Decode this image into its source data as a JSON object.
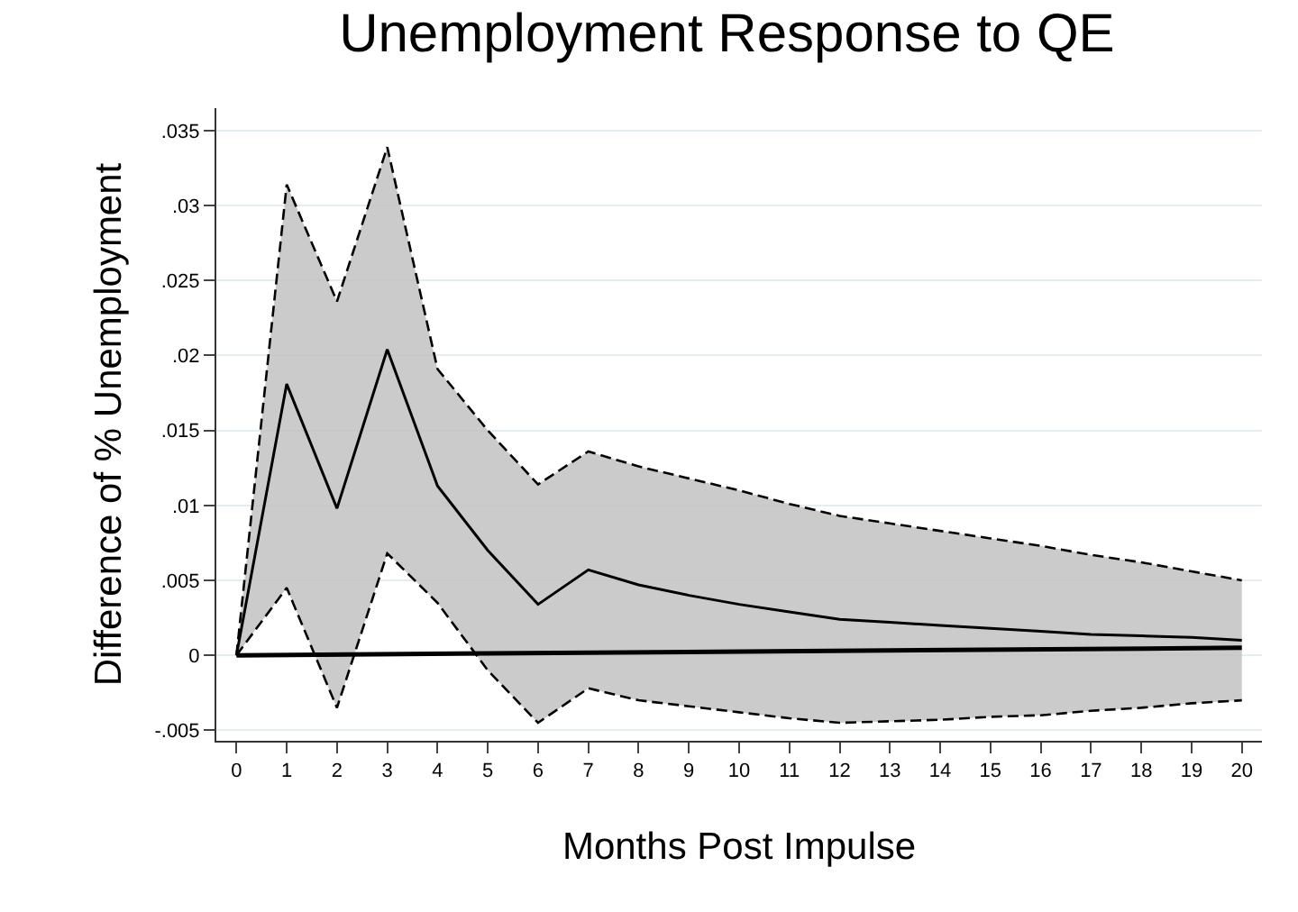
{
  "chart_data": {
    "type": "line",
    "title": "Unemployment Response to QE",
    "xlabel": "Months Post Impulse",
    "ylabel": "Difference of % Unemployment",
    "x": [
      0,
      1,
      2,
      3,
      4,
      5,
      6,
      7,
      8,
      9,
      10,
      11,
      12,
      13,
      14,
      15,
      16,
      17,
      18,
      19,
      20
    ],
    "series": [
      {
        "color": "#000000",
        "line_style": "solid",
        "values": [
          0,
          0.0181,
          0.0098,
          0.0204,
          0.0113,
          0.007,
          0.0034,
          0.0057,
          0.0047,
          0.004,
          0.0034,
          0.0029,
          0.0024,
          0.0022,
          0.002,
          0.0018,
          0.0016,
          0.0014,
          0.0013,
          0.0012,
          0.001
        ],
        "lower": [
          0,
          0.0045,
          -0.0035,
          0.0068,
          0.0035,
          -0.001,
          -0.0045,
          -0.0022,
          -0.003,
          -0.0034,
          -0.0038,
          -0.0042,
          -0.0045,
          -0.0044,
          -0.0043,
          -0.0041,
          -0.004,
          -0.0037,
          -0.0035,
          -0.0032,
          -0.003
        ],
        "upper": [
          0,
          0.0314,
          0.0236,
          0.0339,
          0.0191,
          0.015,
          0.0114,
          0.0136,
          0.0126,
          0.0118,
          0.011,
          0.0101,
          0.0093,
          0.0088,
          0.0083,
          0.0078,
          0.0073,
          0.0067,
          0.0062,
          0.0056,
          0.005
        ]
      },
      {
        "color": "#000000",
        "line_style": "solid",
        "x": [
          0,
          20
        ],
        "values": [
          0,
          0.0005
        ]
      },
      {
        "color": "#000000",
        "line_style": "dashed",
        "values": [
          0,
          0.0314,
          0.0236,
          0.0339,
          0.0191,
          0.015,
          0.0114,
          0.0136,
          0.0126,
          0.0118,
          0.011,
          0.0101,
          0.0093,
          0.0088,
          0.0083,
          0.0078,
          0.0073,
          0.0067,
          0.0062,
          0.0056,
          0.005
        ]
      },
      {
        "color": "#000000",
        "line_style": "dashed",
        "values": [
          0,
          0.0045,
          -0.0035,
          0.0068,
          0.0035,
          -0.001,
          -0.0045,
          -0.0022,
          -0.003,
          -0.0034,
          -0.0038,
          -0.0042,
          -0.0045,
          -0.0044,
          -0.0043,
          -0.0041,
          -0.004,
          -0.0037,
          -0.0035,
          -0.0032,
          -0.003
        ]
      }
    ],
    "xlim": [
      -0.4,
      20.4
    ],
    "xticks": [
      0,
      1,
      2,
      3,
      4,
      5,
      6,
      7,
      8,
      9,
      10,
      11,
      12,
      13,
      14,
      15,
      16,
      17,
      18,
      19,
      20
    ],
    "ylim": [
      -0.0057,
      0.0365
    ],
    "yticks": [
      {
        "value": -0.005,
        "label": "-.005"
      },
      0,
      {
        "value": 0.005,
        "label": ".005"
      },
      {
        "value": 0.01,
        "label": ".01"
      },
      {
        "value": 0.015,
        "label": ".015"
      },
      {
        "value": 0.02,
        "label": ".02"
      },
      {
        "value": 0.025,
        "label": ".025"
      },
      {
        "value": 0.03,
        "label": ".03"
      },
      {
        "value": 0.035,
        "label": ".035"
      }
    ],
    "grid": "y"
  }
}
